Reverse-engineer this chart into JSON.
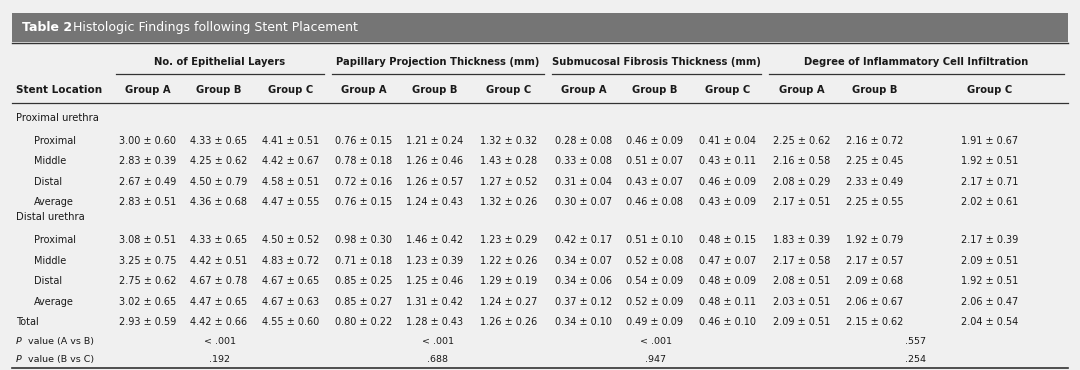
{
  "title_bold": "Table 2",
  "title_rest": ". Histologic Findings following Stent Placement",
  "title_bg": "#757575",
  "title_color": "#ffffff",
  "bg_color": "#f0f0f0",
  "col_group_headers": [
    "No. of Epithelial Layers",
    "Papillary Projection Thickness (mm)",
    "Submucosal Fibrosis Thickness (mm)",
    "Degree of Inflammatory Cell Infiltration"
  ],
  "sub_headers": [
    "Group A",
    "Group B",
    "Group C"
  ],
  "row_header": "Stent Location",
  "rows": [
    {
      "label": "Proximal",
      "section": "proximal",
      "indent": true,
      "values": [
        "3.00 ± 0.60",
        "4.33 ± 0.65",
        "4.41 ± 0.51",
        "0.76 ± 0.15",
        "1.21 ± 0.24",
        "1.32 ± 0.32",
        "0.28 ± 0.08",
        "0.46 ± 0.09",
        "0.41 ± 0.04",
        "2.25 ± 0.62",
        "2.16 ± 0.72",
        "1.91 ± 0.67"
      ]
    },
    {
      "label": "Middle",
      "section": "proximal",
      "indent": true,
      "values": [
        "2.83 ± 0.39",
        "4.25 ± 0.62",
        "4.42 ± 0.67",
        "0.78 ± 0.18",
        "1.26 ± 0.46",
        "1.43 ± 0.28",
        "0.33 ± 0.08",
        "0.51 ± 0.07",
        "0.43 ± 0.11",
        "2.16 ± 0.58",
        "2.25 ± 0.45",
        "1.92 ± 0.51"
      ]
    },
    {
      "label": "Distal",
      "section": "proximal",
      "indent": true,
      "values": [
        "2.67 ± 0.49",
        "4.50 ± 0.79",
        "4.58 ± 0.51",
        "0.72 ± 0.16",
        "1.26 ± 0.57",
        "1.27 ± 0.52",
        "0.31 ± 0.04",
        "0.43 ± 0.07",
        "0.46 ± 0.09",
        "2.08 ± 0.29",
        "2.33 ± 0.49",
        "2.17 ± 0.71"
      ]
    },
    {
      "label": "Average",
      "section": "proximal",
      "indent": true,
      "values": [
        "2.83 ± 0.51",
        "4.36 ± 0.68",
        "4.47 ± 0.55",
        "0.76 ± 0.15",
        "1.24 ± 0.43",
        "1.32 ± 0.26",
        "0.30 ± 0.07",
        "0.46 ± 0.08",
        "0.43 ± 0.09",
        "2.17 ± 0.51",
        "2.25 ± 0.55",
        "2.02 ± 0.61"
      ]
    },
    {
      "label": "Proximal",
      "section": "distal",
      "indent": true,
      "values": [
        "3.08 ± 0.51",
        "4.33 ± 0.65",
        "4.50 ± 0.52",
        "0.98 ± 0.30",
        "1.46 ± 0.42",
        "1.23 ± 0.29",
        "0.42 ± 0.17",
        "0.51 ± 0.10",
        "0.48 ± 0.15",
        "1.83 ± 0.39",
        "1.92 ± 0.79",
        "2.17 ± 0.39"
      ]
    },
    {
      "label": "Middle",
      "section": "distal",
      "indent": true,
      "values": [
        "3.25 ± 0.75",
        "4.42 ± 0.51",
        "4.83 ± 0.72",
        "0.71 ± 0.18",
        "1.23 ± 0.39",
        "1.22 ± 0.26",
        "0.34 ± 0.07",
        "0.52 ± 0.08",
        "0.47 ± 0.07",
        "2.17 ± 0.58",
        "2.17 ± 0.57",
        "2.09 ± 0.51"
      ]
    },
    {
      "label": "Distal",
      "section": "distal",
      "indent": true,
      "values": [
        "2.75 ± 0.62",
        "4.67 ± 0.78",
        "4.67 ± 0.65",
        "0.85 ± 0.25",
        "1.25 ± 0.46",
        "1.29 ± 0.19",
        "0.34 ± 0.06",
        "0.54 ± 0.09",
        "0.48 ± 0.09",
        "2.08 ± 0.51",
        "2.09 ± 0.68",
        "1.92 ± 0.51"
      ]
    },
    {
      "label": "Average",
      "section": "distal",
      "indent": true,
      "values": [
        "3.02 ± 0.65",
        "4.47 ± 0.65",
        "4.67 ± 0.63",
        "0.85 ± 0.27",
        "1.31 ± 0.42",
        "1.24 ± 0.27",
        "0.37 ± 0.12",
        "0.52 ± 0.09",
        "0.48 ± 0.11",
        "2.03 ± 0.51",
        "2.06 ± 0.67",
        "2.06 ± 0.47"
      ]
    }
  ],
  "total_row": {
    "label": "Total",
    "values": [
      "2.93 ± 0.59",
      "4.42 ± 0.66",
      "4.55 ± 0.60",
      "0.80 ± 0.22",
      "1.28 ± 0.43",
      "1.26 ± 0.26",
      "0.34 ± 0.10",
      "0.49 ± 0.09",
      "0.46 ± 0.10",
      "2.09 ± 0.51",
      "2.15 ± 0.62",
      "2.04 ± 0.54"
    ]
  },
  "pvalue_ab": {
    "label": "P value (A vs B)",
    "pvals": [
      "< .001",
      "< .001",
      "< .001",
      ".557"
    ]
  },
  "pvalue_bc": {
    "label": "P value (B vs C)",
    "pvals": [
      ".192",
      ".688",
      ".947",
      ".254"
    ]
  },
  "pvalue_ab_col": [
    1,
    4,
    7,
    10
  ],
  "pvalue_bc_col": [
    2,
    5,
    8,
    11
  ],
  "text_color": "#1a1a1a",
  "header_color": "#1a1a1a",
  "section_color": "#1a1a1a",
  "data_color": "#1a1a1a",
  "line_color": "#333333"
}
